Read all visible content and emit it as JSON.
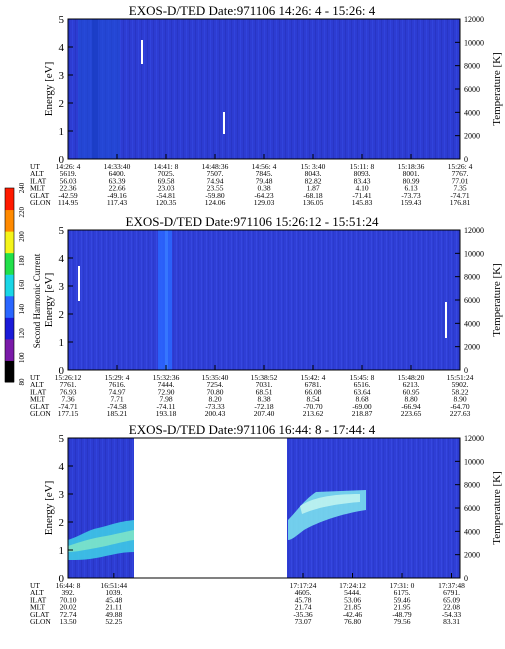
{
  "chart_data": [
    {
      "type": "heatmap",
      "title": "EXOS-D/TED   Date:971106  14:26: 4 - 15:26: 4",
      "ylabel": "Energy [eV]",
      "y2label": "Temperature [K]",
      "ylim": [
        0,
        5
      ],
      "y2lim": [
        0,
        12000
      ],
      "yticks": [
        "0",
        "1",
        "2",
        "3",
        "4",
        "5"
      ],
      "y2ticks": [
        "0",
        "2000",
        "4000",
        "6000",
        "8000",
        "10000",
        "12000"
      ],
      "ephemeris_labels": [
        "UT",
        "ALT",
        "ILAT",
        "MLT",
        "GLAT",
        "GLON"
      ],
      "ephemeris": [
        [
          "14:26: 4",
          "5619.",
          "56.03",
          "22.36",
          "-42.59",
          "114.95"
        ],
        [
          "14:33:40",
          "6400.",
          "63.39",
          "22.66",
          "-49.16",
          "117.43"
        ],
        [
          "14:41: 8",
          "7025.",
          "69.58",
          "23.03",
          "-54.81",
          "120.35"
        ],
        [
          "14:48:36",
          "7507.",
          "74.94",
          "23.55",
          "-59.80",
          "124.06"
        ],
        [
          "14:56: 4",
          "7845.",
          "79.48",
          "0.38",
          "-64.23",
          "129.03"
        ],
        [
          "15: 3:40",
          "8043.",
          "82.82",
          "1.87",
          "-68.18",
          "136.05"
        ],
        [
          "15:11: 8",
          "8093.",
          "83.43",
          "4.10",
          "-71.41",
          "145.83"
        ],
        [
          "15:18:36",
          "8001.",
          "80.99",
          "6.13",
          "-73.73",
          "159.43"
        ],
        [
          "15:26: 4",
          "7767.",
          "77.01",
          "7.35",
          "-74.71",
          "176.81"
        ]
      ],
      "features": [
        {
          "kind": "vertical-band",
          "x_fraction": 0.04,
          "width_fraction": 0.12,
          "color": "#1e4fd6"
        },
        {
          "kind": "temperature-bar",
          "x_fraction": 0.115,
          "y_range_eV": [
            3.4,
            4.3
          ]
        },
        {
          "kind": "temperature-bar",
          "x_fraction": 0.405,
          "y_range_eV": [
            0.9,
            1.7
          ]
        }
      ]
    },
    {
      "type": "heatmap",
      "title": "EXOS-D/TED   Date:971106  15:26:12 - 15:51:24",
      "ylabel": "Energy [eV]",
      "y2label": "Temperature [K]",
      "ylim": [
        0,
        5
      ],
      "y2lim": [
        0,
        12000
      ],
      "yticks": [
        "0",
        "1",
        "2",
        "3",
        "4",
        "5"
      ],
      "y2ticks": [
        "0",
        "2000",
        "4000",
        "6000",
        "8000",
        "10000",
        "12000"
      ],
      "ephemeris_labels": [
        "UT",
        "ALT",
        "ILAT",
        "MLT",
        "GLAT",
        "GLON"
      ],
      "ephemeris": [
        [
          "15:26:12",
          "7761.",
          "76.93",
          "7.36",
          "-74.71",
          "177.15"
        ],
        [
          "15:29: 4",
          "7616.",
          "74.97",
          "7.71",
          "-74.58",
          "185.21"
        ],
        [
          "15:32:36",
          "7444.",
          "72.90",
          "7.98",
          "-74.11",
          "193.18"
        ],
        [
          "15:35:40",
          "7254.",
          "70.80",
          "8.20",
          "-73.33",
          "200.43"
        ],
        [
          "15:38:52",
          "7031.",
          "68.51",
          "8.38",
          "-72.18",
          "207.40"
        ],
        [
          "15:42: 4",
          "6781.",
          "66.08",
          "8.54",
          "-70.70",
          "213.62"
        ],
        [
          "15:45: 8",
          "6516.",
          "63.64",
          "8.68",
          "-69.00",
          "218.87"
        ],
        [
          "15:48:20",
          "6213.",
          "60.95",
          "8.80",
          "-66.94",
          "223.65"
        ],
        [
          "15:51:24",
          "5902.",
          "58.22",
          "8.90",
          "-64.70",
          "227.63"
        ]
      ],
      "features": [
        {
          "kind": "vertical-band",
          "x_fraction": 0.28,
          "width_fraction": 0.035,
          "color": "#2a66ff"
        },
        {
          "kind": "temperature-bar",
          "x_fraction": 0.018,
          "y_range_eV": [
            2.5,
            3.7
          ]
        },
        {
          "kind": "temperature-bar",
          "x_fraction": 0.985,
          "y_range_eV": [
            1.1,
            2.4
          ]
        }
      ]
    },
    {
      "type": "heatmap",
      "title": "EXOS-D/TED   Date:971106  16:44: 8 - 17:44: 4",
      "ylabel": "Energy [eV]",
      "y2label": "Temperature [K]",
      "ylim": [
        0,
        5
      ],
      "y2lim": [
        0,
        12000
      ],
      "yticks": [
        "0",
        "1",
        "2",
        "3",
        "4",
        "5"
      ],
      "y2ticks": [
        "0",
        "2000",
        "4000",
        "6000",
        "8000",
        "10000",
        "12000"
      ],
      "ephemeris_labels": [
        "UT",
        "ALT",
        "ILAT",
        "MLT",
        "GLAT",
        "GLON"
      ],
      "ephemeris_left": [
        [
          "16:44: 8",
          "392.",
          "70.10",
          "20.02",
          "72.74",
          "13.50"
        ],
        [
          "16:51:44",
          "1039.",
          "45.48",
          "21.11",
          "49.88",
          "52.25"
        ]
      ],
      "ephemeris_right": [
        [
          "17:17:24",
          "4605.",
          "45.78",
          "21.74",
          "-35.36",
          "73.07"
        ],
        [
          "17:24:12",
          "5444.",
          "53.06",
          "21.85",
          "-42.46",
          "76.80"
        ],
        [
          "17:31: 0",
          "6175.",
          "59.46",
          "21.95",
          "-48.79",
          "79.56"
        ],
        [
          "17:37:48",
          "6791.",
          "65.09",
          "22.08",
          "-54.33",
          "83.31"
        ]
      ],
      "data_gaps": [
        {
          "from_fraction": 0.215,
          "to_fraction": 0.505
        }
      ],
      "features": [
        {
          "kind": "enhancement",
          "segment": "left",
          "y_range_eV": [
            1.0,
            2.3
          ],
          "color": "#3fd0e8"
        },
        {
          "kind": "enhancement",
          "segment": "right",
          "y_range_eV": [
            2.0,
            3.6
          ],
          "color": "#7ee8f0"
        }
      ]
    }
  ],
  "colorbar": {
    "label": "Second Harmonic Current",
    "ticks": [
      "80",
      "100",
      "120",
      "140",
      "160",
      "180",
      "200",
      "220",
      "240"
    ],
    "range": [
      80,
      240
    ],
    "colors": [
      "#000000",
      "#7a1aa8",
      "#1a1ad8",
      "#2a66ff",
      "#19d6e6",
      "#21e04a",
      "#f4f41a",
      "#ff8a00",
      "#ff1a00"
    ]
  }
}
